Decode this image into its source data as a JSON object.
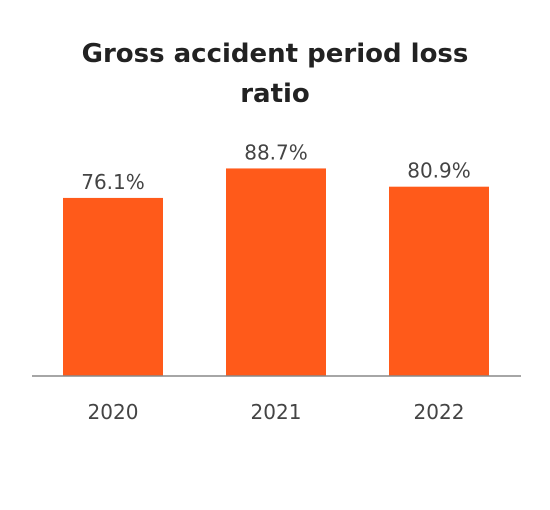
{
  "chart_data": {
    "type": "bar",
    "title_lines": [
      "Gross accident period loss",
      "ratio"
    ],
    "categories": [
      "2020",
      "2021",
      "2022"
    ],
    "values": [
      76.1,
      88.7,
      80.9
    ],
    "value_labels": [
      "76.1%",
      "88.7%",
      "80.9%"
    ],
    "unit": "%",
    "ylim": [
      0,
      100
    ],
    "grid": false,
    "legend": "none",
    "bar_color": "#FF5A1A",
    "axis_color": "#888888"
  }
}
